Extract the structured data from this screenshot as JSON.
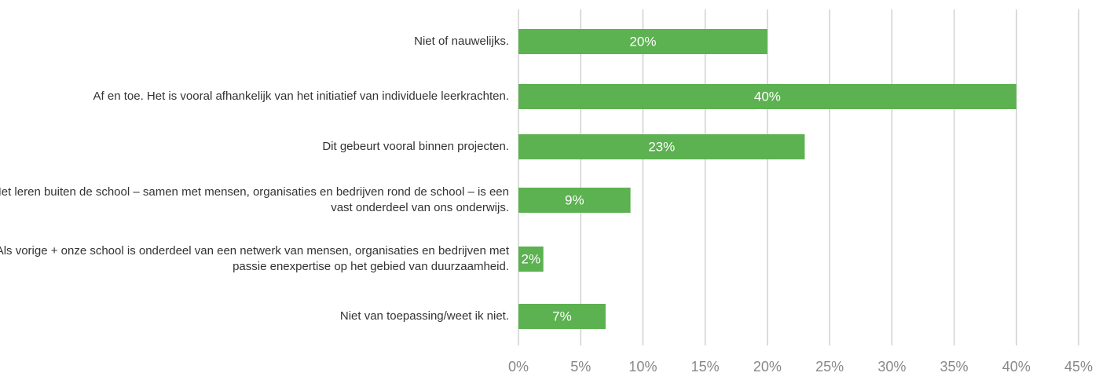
{
  "chart_data": {
    "type": "bar",
    "orientation": "horizontal",
    "categories": [
      "Niet of nauwelijks.",
      "Af en toe. Het is vooral afhankelijk van het initiatief van individuele leerkrachten.",
      "Dit gebeurt vooral binnen projecten.",
      "Het leren buiten de school – samen met mensen, organisaties en bedrijven rond de school – is een vast onderdeel van ons onderwijs.",
      "Als vorige +  onze school is onderdeel van een netwerk van mensen, organisaties en bedrijven met passie enexpertise op het gebied van duurzaamheid.",
      "Niet van toepassing/weet ik niet."
    ],
    "values": [
      20,
      40,
      23,
      9,
      2,
      7
    ],
    "value_labels": [
      "20%",
      "40%",
      "23%",
      "9%",
      "2%",
      "7%"
    ],
    "color": "#5cb150",
    "xlim": [
      0,
      45
    ],
    "xticks": [
      {
        "value": 0,
        "label": "0%"
      },
      {
        "value": 5,
        "label": "5%"
      },
      {
        "value": 10,
        "label": "10%"
      },
      {
        "value": 15,
        "label": "15%"
      },
      {
        "value": 20,
        "label": "20%"
      },
      {
        "value": 25,
        "label": "25%"
      },
      {
        "value": 30,
        "label": "30%"
      },
      {
        "value": 35,
        "label": "35%"
      },
      {
        "value": 40,
        "label": "40%"
      },
      {
        "value": 45,
        "label": "45%"
      }
    ],
    "grid": true
  }
}
